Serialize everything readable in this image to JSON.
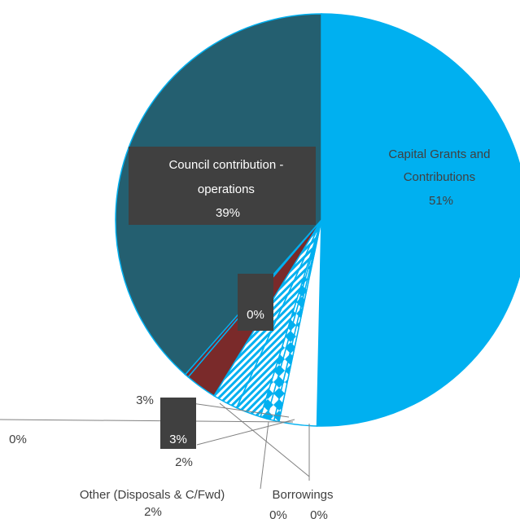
{
  "chart_data": {
    "type": "pie",
    "slices": [
      {
        "label": "Capital Grants and Contributions",
        "value": 51,
        "display": "51%",
        "color": "#00b0f0",
        "pattern": "solid"
      },
      {
        "label": "",
        "value": 3,
        "display": "3%",
        "color": "#ffffff",
        "pattern": "solid"
      },
      {
        "label": "Borrowings",
        "value": 0.4,
        "display": "0%",
        "color": "#00b0f0",
        "pattern": "diamond"
      },
      {
        "label": "",
        "value": 0.6,
        "display": "0%",
        "color": "#00b0f0",
        "pattern": "diamond"
      },
      {
        "label": "",
        "value": 0.5,
        "display": "0%",
        "color": "#00b0f0",
        "pattern": "diamond"
      },
      {
        "label": "Other (Disposals & C/Fwd)",
        "value": 2,
        "display": "2%",
        "color": "#00b0f0",
        "pattern": "diagonal"
      },
      {
        "label": "",
        "value": 2,
        "display": "2%",
        "color": "#00b0f0",
        "pattern": "diagonal"
      },
      {
        "label": "",
        "value": 2.5,
        "display": "3%",
        "color": "#7a2a2a",
        "pattern": "solid"
      },
      {
        "label": "",
        "value": 0.3,
        "display": "0%",
        "color": "#7a2a2a",
        "pattern": "solid"
      },
      {
        "label": "Council contribution - operations",
        "value": 39,
        "display": "39%",
        "color": "#245f70",
        "pattern": "solid"
      }
    ],
    "labels": {
      "capital": [
        "Capital Grants and",
        "Contributions",
        "51%"
      ],
      "council": [
        "Council contribution -",
        "operations",
        "39%"
      ],
      "other": "Other (Disposals & C/Fwd)",
      "other_pct": "2%",
      "borrowings": "Borrowings",
      "pct_a": "0%",
      "pct_b": "0%",
      "inner_zero": "0%",
      "three_a": "3%",
      "three_b": "3%",
      "two": "2%",
      "zero_left": "0%"
    }
  }
}
